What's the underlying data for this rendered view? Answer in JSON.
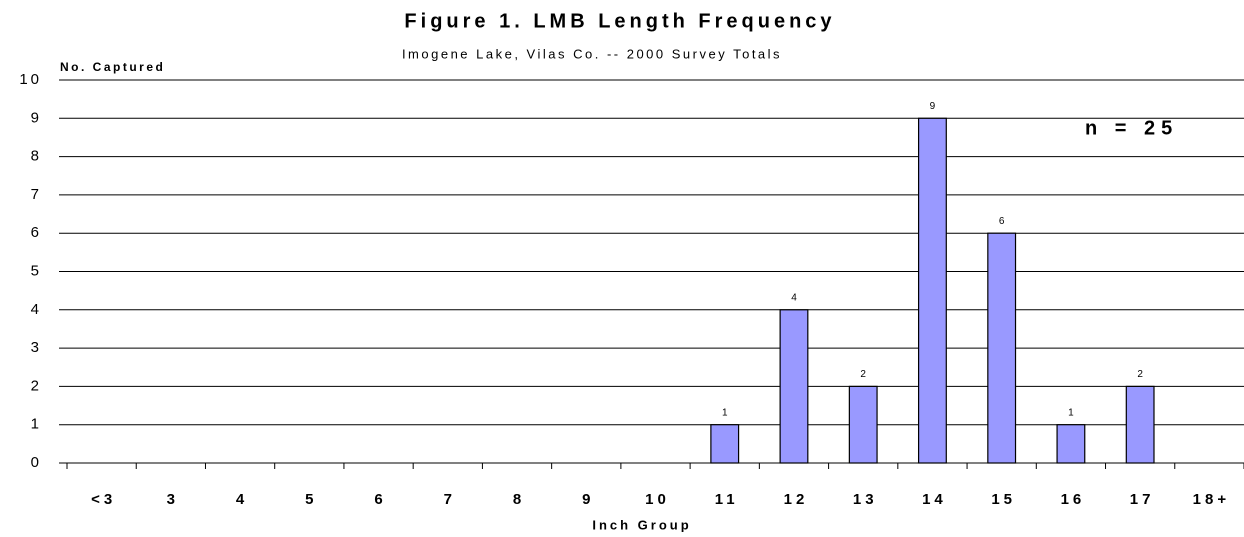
{
  "chart_data": {
    "type": "bar",
    "title": "Figure 1. LMB Length Frequency",
    "subtitle": "Imogene Lake, Vilas Co. -- 2000 Survey Totals",
    "y_label": "No. Captured",
    "x_label": "Inch Group",
    "annotation": "n = 25",
    "categories": [
      "<3",
      "3",
      "4",
      "5",
      "6",
      "7",
      "8",
      "9",
      "10",
      "11",
      "12",
      "13",
      "14",
      "15",
      "16",
      "17",
      "18+"
    ],
    "values": [
      0,
      0,
      0,
      0,
      0,
      0,
      0,
      0,
      0,
      1,
      4,
      2,
      9,
      6,
      1,
      2,
      0
    ],
    "color": "#9999ff",
    "ylim": [
      0,
      10
    ],
    "yticks": [
      0,
      1,
      2,
      3,
      4,
      5,
      6,
      7,
      8,
      9,
      10
    ],
    "grid": true
  }
}
